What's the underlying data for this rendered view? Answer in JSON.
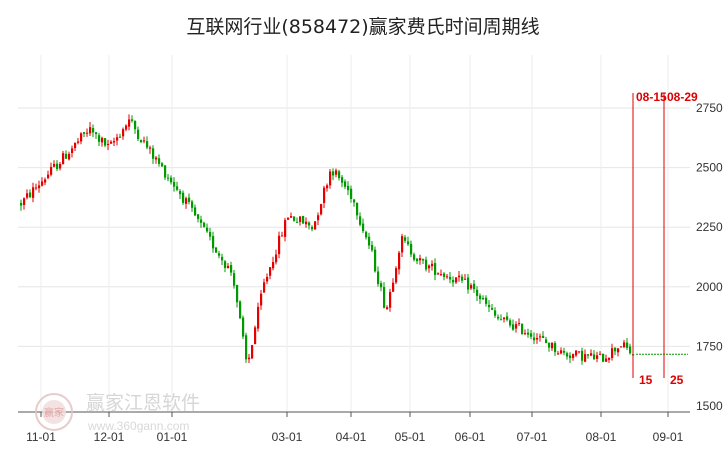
{
  "chart_data": {
    "type": "candlestick",
    "title": "互联网行业(858472)赢家费氏时间周期线",
    "y_ticks": [
      1500,
      1750,
      2000,
      2250,
      2500,
      2750
    ],
    "ylim": [
      1500,
      2750
    ],
    "x_ticks": [
      "11-01",
      "12-01",
      "01-01",
      "03-01",
      "04-01",
      "05-01",
      "06-01",
      "07-01",
      "08-01",
      "09-01"
    ],
    "grid": true,
    "ohlc_keypoints": [
      [
        "start",
        2350
      ],
      [
        "11-10",
        2540
      ],
      [
        "11-20",
        2660
      ],
      [
        "11-30",
        2580
      ],
      [
        "12-10",
        2700
      ],
      [
        "12-20",
        2560
      ],
      [
        "01-05",
        2400
      ],
      [
        "01-20",
        2200
      ],
      [
        "02-05",
        2050
      ],
      [
        "02-20",
        1660
      ],
      [
        "02-25",
        2000
      ],
      [
        "03-05",
        2300
      ],
      [
        "03-15",
        2250
      ],
      [
        "03-25",
        2500
      ],
      [
        "04-01",
        2380
      ],
      [
        "04-15",
        2150
      ],
      [
        "04-25",
        1900
      ],
      [
        "05-10",
        2200
      ],
      [
        "05-20",
        2100
      ],
      [
        "06-01",
        2000
      ],
      [
        "06-15",
        1870
      ],
      [
        "07-01",
        1800
      ],
      [
        "07-15",
        1720
      ],
      [
        "08-01",
        1700
      ],
      [
        "08-10",
        1760
      ],
      [
        "08-15",
        1715
      ]
    ],
    "trend_line": {
      "value": 1717,
      "color": "#009900"
    },
    "cycle_lines": [
      {
        "date_label": "08-15",
        "count_label": "15"
      },
      {
        "date_label": "08-29",
        "count_label": "25"
      }
    ],
    "up_color": "#e60000",
    "down_color": "#009900",
    "watermark": {
      "text": "赢家江恩软件",
      "url": "www.360gann.com",
      "logo_text": "赢家"
    }
  }
}
